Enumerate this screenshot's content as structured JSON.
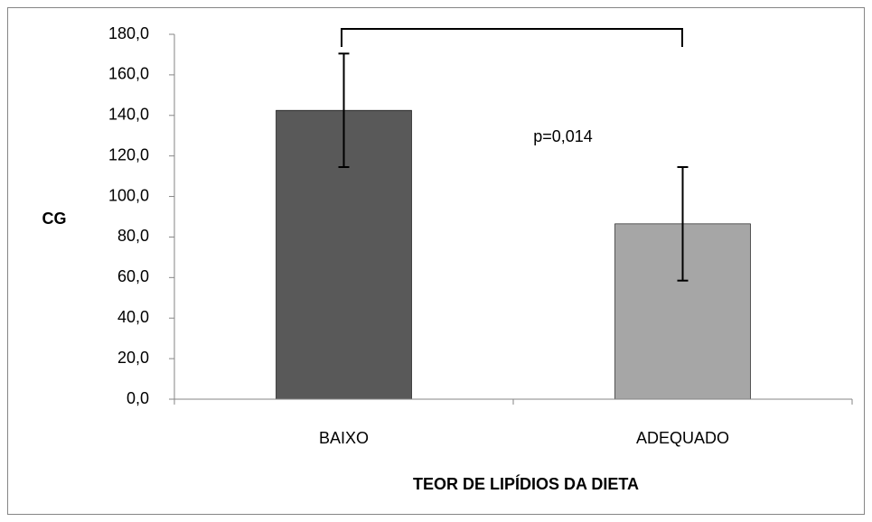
{
  "chart_data": {
    "type": "bar",
    "categories": [
      "BAIXO",
      "ADEQUADO"
    ],
    "values": [
      142.5,
      86.5
    ],
    "errors": [
      28,
      28
    ],
    "colors": [
      "#595959",
      "#a6a6a6"
    ],
    "ylabel": "CG",
    "xlabel": "TEOR DE LIPÍDIOS DA DIETA",
    "annotation": "p=0,014",
    "ylim": [
      0,
      180
    ],
    "yticks": [
      {
        "value": 0,
        "label": "0,0"
      },
      {
        "value": 20,
        "label": "20,0"
      },
      {
        "value": 40,
        "label": "40,0"
      },
      {
        "value": 60,
        "label": "60,0"
      },
      {
        "value": 80,
        "label": "80,0"
      },
      {
        "value": 100,
        "label": "100,0"
      },
      {
        "value": 120,
        "label": "120,0"
      },
      {
        "value": 140,
        "label": "140,0"
      },
      {
        "value": 160,
        "label": "160,0"
      },
      {
        "value": 180,
        "label": "180,0"
      }
    ],
    "grid": false
  }
}
